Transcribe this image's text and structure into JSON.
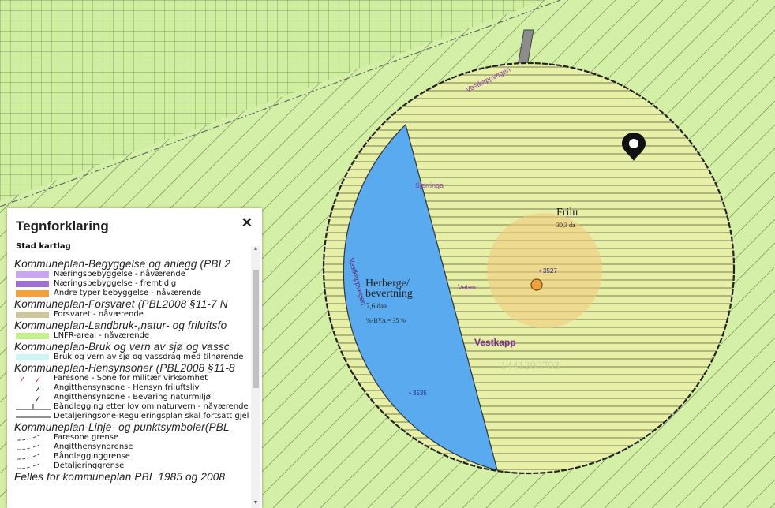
{
  "map": {
    "road_labels": {
      "vestkappvegen_top": "Vestkappvegen",
      "vestkappvegen_left": "Vestkappvegen",
      "sjerringa": "Sjerringa",
      "veten": "Veten"
    },
    "zone_labels": {
      "herberge_line1": "Herberge/",
      "herberge_line2": "bevertning",
      "herberge_area": "7,6 daa",
      "herberge_bya": "%-BYA = 35 %",
      "frilu": "Frilu",
      "frilu_area": "30,3 da",
      "vestkapp": "Vestkapp",
      "property_id": "1441200703"
    },
    "points": {
      "p3527": "• 3527",
      "p3535": "• 3535"
    },
    "colors": {
      "lnfr_green": "#d4f0a6",
      "building_blue": "#5aaaf0",
      "circle_yellow": "#e8f0a8",
      "soft_zone": "#f0d080",
      "marker_orange": "#f2a23c"
    },
    "marker_icon": "location-pin-icon"
  },
  "legend": {
    "title": "Tegnforklaring",
    "close": "✕",
    "layer_heading": "Stad kartlag",
    "groups": [
      {
        "heading": "Kommuneplan-Begyggelse og anlegg (PBL2",
        "items": [
          {
            "label": "Næringsbebyggelse - nåværende",
            "symbol": "fill",
            "color": "#c9a6f0"
          },
          {
            "label": "Næringsbebyggelse - fremtidig",
            "symbol": "fill",
            "color": "#9f6fd4"
          },
          {
            "label": "Andre typer bebyggelse - nåværende",
            "symbol": "fill",
            "color": "#f2a23c"
          }
        ]
      },
      {
        "heading": "Kommuneplan-Forsvaret (PBL2008 §11-7 N",
        "items": [
          {
            "label": "Forsvaret - nåværende",
            "symbol": "fill",
            "color": "#cdc79c"
          }
        ]
      },
      {
        "heading": "Kommuneplan-Landbruk-,natur- og friluftsfo",
        "items": [
          {
            "label": "LNFR-areal - nåværende",
            "symbol": "fill",
            "color": "#c6f08c"
          }
        ]
      },
      {
        "heading": "Kommuneplan-Bruk og vern av sjø og vassc",
        "items": [
          {
            "label": "Bruk og vern av sjø og vassdrag med tilhørende",
            "symbol": "fill",
            "color": "#cdf5f5"
          }
        ]
      },
      {
        "heading": "Kommuneplan-Hensynsoner (PBL2008 §11-8",
        "items": [
          {
            "label": "Faresone - Sone for militær virksomhet",
            "symbol": "redslash",
            "color": "#e03030"
          },
          {
            "label": "Angitthensynsone - Hensyn friluftsliv",
            "symbol": "slash",
            "color": "#222222"
          },
          {
            "label": "Angitthensynsone - Bevaring naturmiljø",
            "symbol": "slash",
            "color": "#222222"
          },
          {
            "label": "Båndlegging etter lov om naturvern - nåværende",
            "symbol": "tline",
            "color": "#222222"
          },
          {
            "label": "Detaljeringsone-Reguleringsplan skal fortsatt gjel",
            "symbol": "line",
            "color": "#222222"
          }
        ]
      },
      {
        "heading": "Kommuneplan-Linje- og punktsymboler(PBL",
        "items": [
          {
            "label": "Faresone grense",
            "symbol": "dashcurve",
            "color": "#555555"
          },
          {
            "label": "Angitthensyngrense",
            "symbol": "dashcurve",
            "color": "#555555"
          },
          {
            "label": "Båndlegginggrense",
            "symbol": "dashcurve",
            "color": "#555555"
          },
          {
            "label": "Detaljeringgrense",
            "symbol": "dashcurve",
            "color": "#555555"
          }
        ]
      },
      {
        "heading": "Felles for  kommuneplan PBL 1985 og 2008",
        "items": []
      }
    ],
    "scroll_up": "▲",
    "scroll_down": "▼"
  }
}
